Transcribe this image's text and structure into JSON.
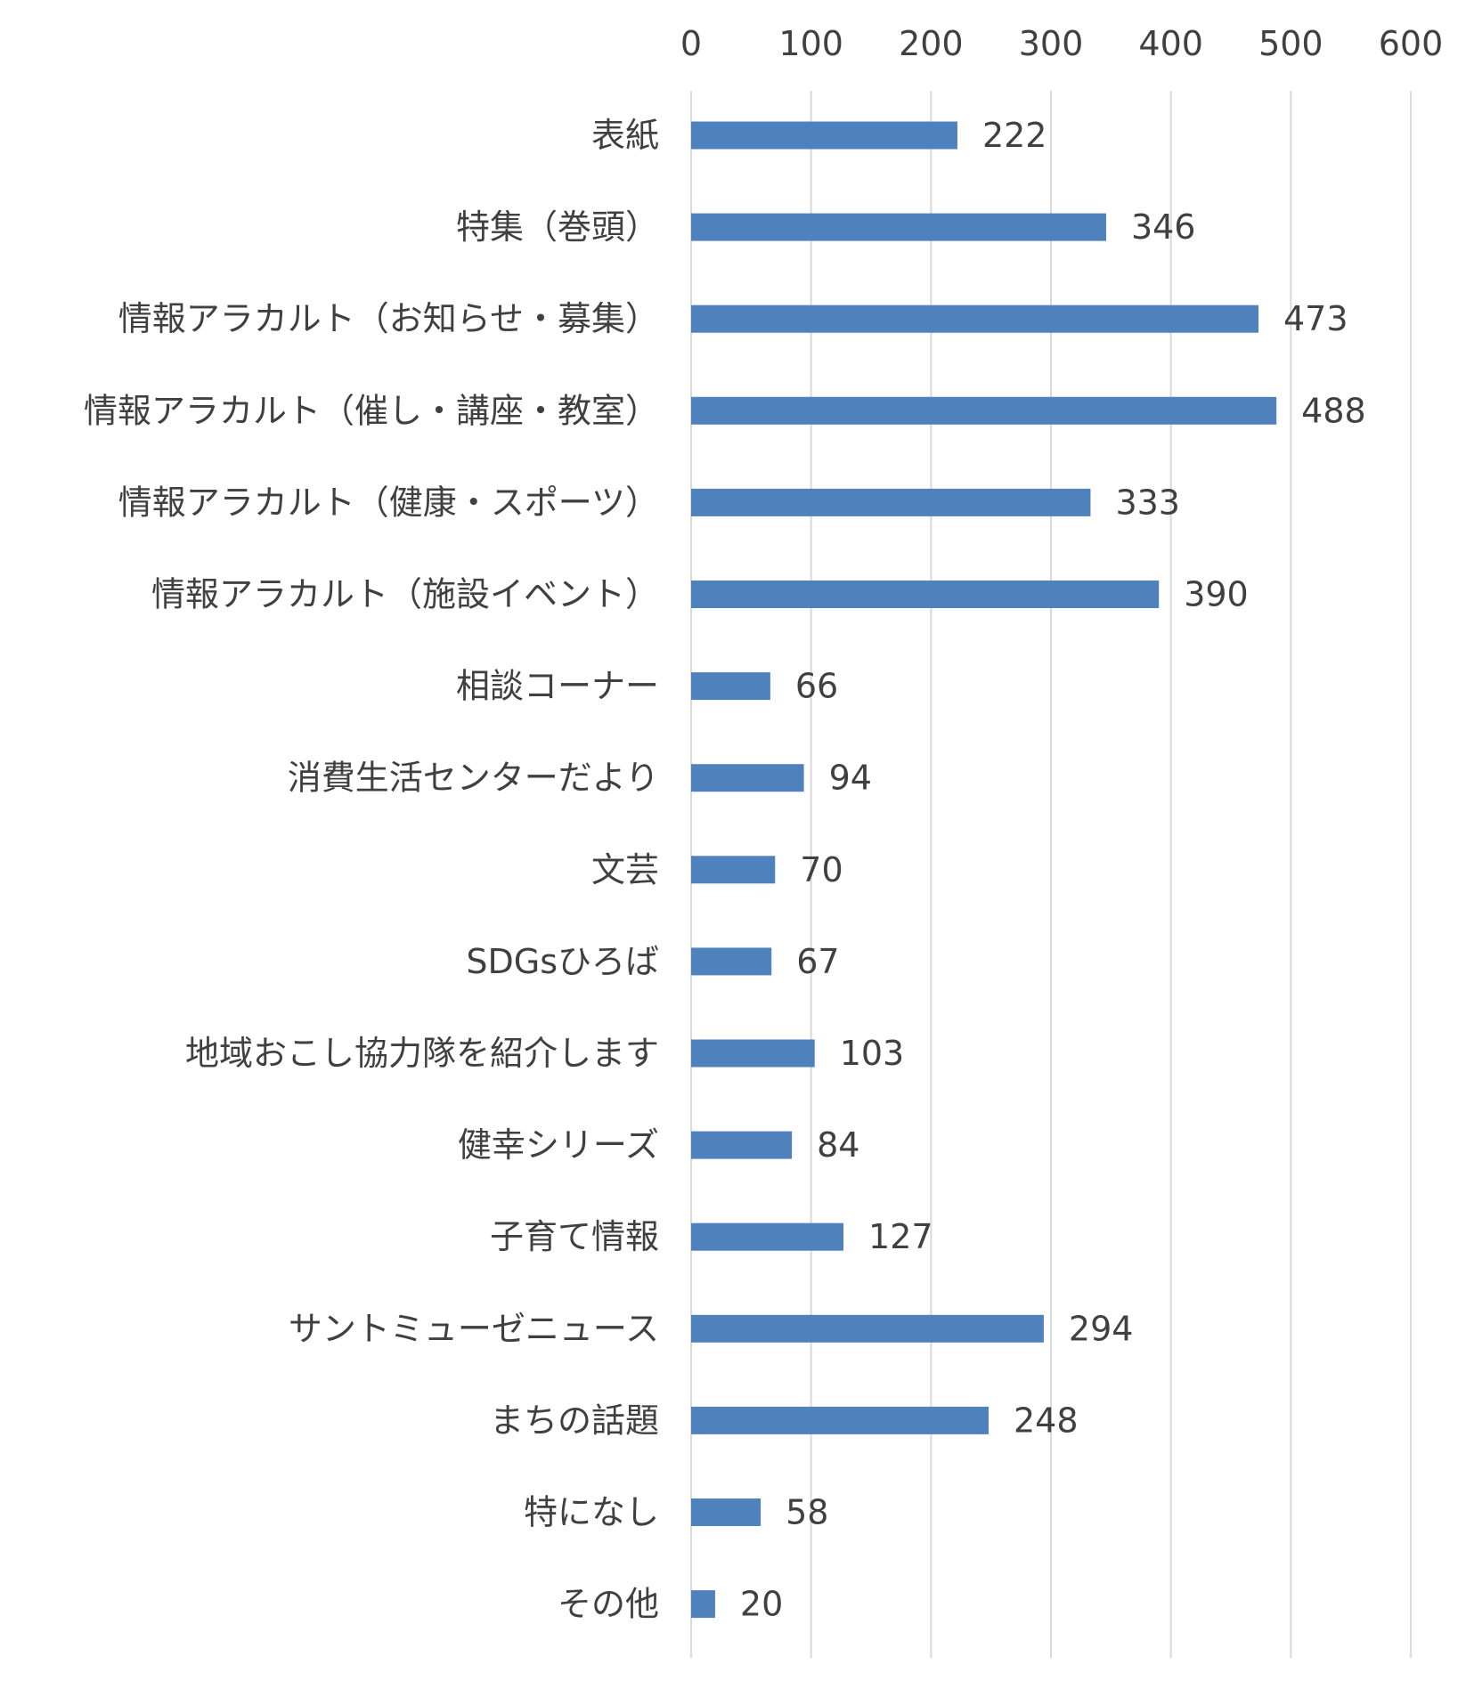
{
  "chart_data": {
    "type": "bar",
    "orientation": "horizontal",
    "categories": [
      "表紙",
      "特集（巻頭）",
      "情報アラカルト（お知らせ・募集）",
      "情報アラカルト（催し・講座・教室）",
      "情報アラカルト（健康・スポーツ）",
      "情報アラカルト（施設イベント）",
      "相談コーナー",
      "消費生活センターだより",
      "文芸",
      "SDGsひろば",
      "地域おこし協力隊を紹介します",
      "健幸シリーズ",
      "子育て情報",
      "サントミューゼニュース",
      "まちの話題",
      "特になし",
      "その他"
    ],
    "values": [
      222,
      346,
      473,
      488,
      333,
      390,
      66,
      94,
      70,
      67,
      103,
      84,
      127,
      294,
      248,
      58,
      20
    ],
    "xlim": [
      0,
      600
    ],
    "x_ticks": [
      "0",
      "100",
      "200",
      "300",
      "400",
      "500",
      "600"
    ],
    "x_axis_position": "top",
    "grid": true,
    "data_labels": true,
    "legend": "none",
    "colors": {
      "bar": "#4f81bd",
      "grid": "#d9d9d9",
      "text": "#404040"
    }
  }
}
